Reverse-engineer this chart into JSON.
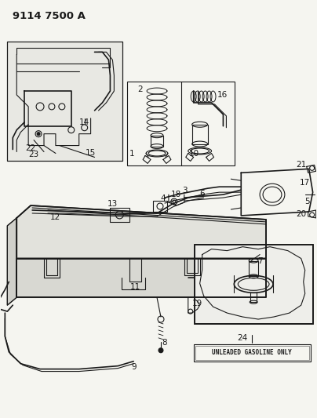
{
  "title": "9114 7500 A",
  "title_fontsize": 9.5,
  "bg_color": "#f5f5f0",
  "line_color": "#1a1a1a",
  "label_fontsize": 7.5,
  "unleaded_text": "UNLEADED GASOLINE ONLY",
  "fig_width": 4.04,
  "fig_height": 5.33,
  "dpi": 100
}
